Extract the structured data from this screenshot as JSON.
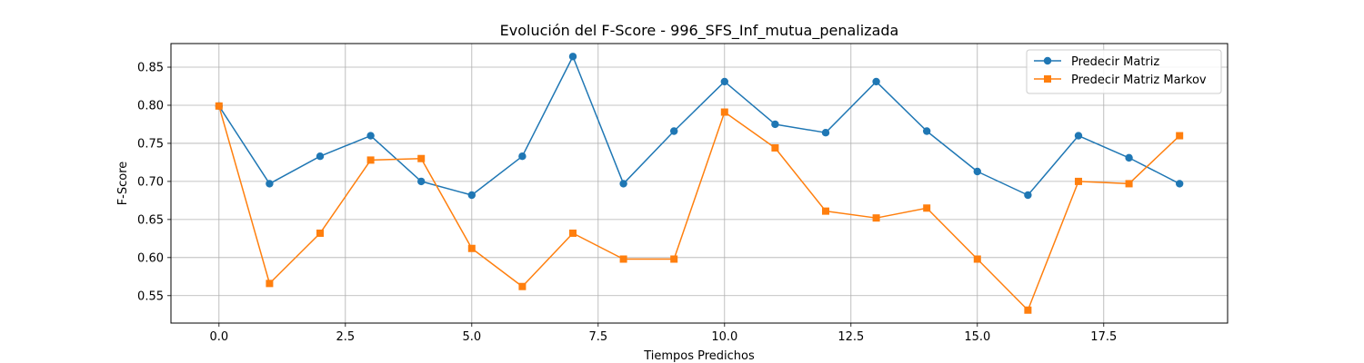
{
  "chart_data": {
    "type": "line",
    "title": "Evolución del F-Score - 996_SFS_Inf_mutua_penalizada",
    "xlabel": "Tiempos Predichos",
    "ylabel": "F-Score",
    "xlim": [
      -0.95,
      19.95
    ],
    "ylim": [
      0.514,
      0.881
    ],
    "xticks": [
      0.0,
      2.5,
      5.0,
      7.5,
      10.0,
      12.5,
      15.0,
      17.5
    ],
    "xtick_labels": [
      "0.0",
      "2.5",
      "5.0",
      "7.5",
      "10.0",
      "12.5",
      "15.0",
      "17.5"
    ],
    "yticks": [
      0.55,
      0.6,
      0.65,
      0.7,
      0.75,
      0.8,
      0.85
    ],
    "ytick_labels": [
      "0.55",
      "0.60",
      "0.65",
      "0.70",
      "0.75",
      "0.80",
      "0.85"
    ],
    "grid": true,
    "legend_position": "top-right",
    "x": [
      0,
      1,
      2,
      3,
      4,
      5,
      6,
      7,
      8,
      9,
      10,
      11,
      12,
      13,
      14,
      15,
      16,
      17,
      18,
      19
    ],
    "series": [
      {
        "name": "Predecir Matriz",
        "color": "#1f77b4",
        "marker": "circle",
        "values": [
          0.799,
          0.697,
          0.733,
          0.76,
          0.7,
          0.682,
          0.733,
          0.864,
          0.697,
          0.766,
          0.831,
          0.775,
          0.764,
          0.831,
          0.766,
          0.713,
          0.682,
          0.76,
          0.731,
          0.697
        ]
      },
      {
        "name": "Predecir Matriz Markov",
        "color": "#ff7f0e",
        "marker": "square",
        "values": [
          0.799,
          0.566,
          0.632,
          0.728,
          0.73,
          0.612,
          0.562,
          0.632,
          0.598,
          0.598,
          0.791,
          0.744,
          0.661,
          0.652,
          0.665,
          0.598,
          0.531,
          0.7,
          0.697,
          0.76
        ]
      }
    ]
  }
}
